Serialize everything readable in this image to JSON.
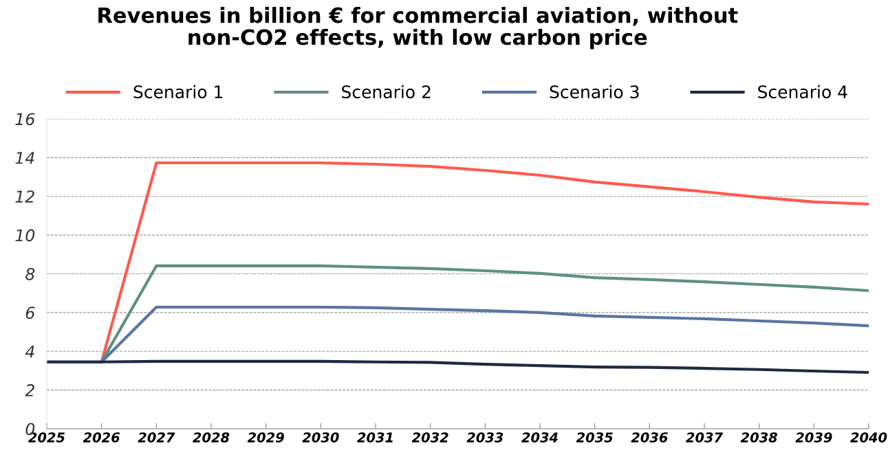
{
  "chart_data": {
    "type": "line",
    "title": "Revenues in billion € for commercial aviation, without\nnon-CO2 effects, with low carbon price",
    "x": [
      2025,
      2026,
      2027,
      2028,
      2029,
      2030,
      2031,
      2032,
      2033,
      2034,
      2035,
      2036,
      2037,
      2038,
      2039,
      2040
    ],
    "series": [
      {
        "name": "Scenario 1",
        "color": "#ff5a4f",
        "values": [
          null,
          3.45,
          13.73,
          13.73,
          13.73,
          13.73,
          13.66,
          13.55,
          13.34,
          13.09,
          12.74,
          12.49,
          12.24,
          11.95,
          11.71,
          11.6
        ]
      },
      {
        "name": "Scenario 2",
        "color": "#5f9080",
        "values": [
          3.45,
          3.45,
          8.41,
          8.41,
          8.41,
          8.41,
          8.34,
          8.27,
          8.16,
          8.02,
          7.8,
          7.7,
          7.59,
          7.45,
          7.31,
          7.13
        ]
      },
      {
        "name": "Scenario 3",
        "color": "#5a74a4",
        "values": [
          3.45,
          3.45,
          6.28,
          6.28,
          6.28,
          6.28,
          6.25,
          6.17,
          6.1,
          6.0,
          5.82,
          5.75,
          5.68,
          5.57,
          5.46,
          5.32
        ]
      },
      {
        "name": "Scenario 4",
        "color": "#1f2a40",
        "values": [
          3.45,
          3.45,
          3.48,
          3.48,
          3.48,
          3.48,
          3.45,
          3.43,
          3.33,
          3.26,
          3.19,
          3.17,
          3.12,
          3.06,
          2.98,
          2.91
        ]
      }
    ],
    "xlim": [
      2025,
      2040
    ],
    "xticks": [
      2025,
      2026,
      2027,
      2028,
      2029,
      2030,
      2031,
      2032,
      2033,
      2034,
      2035,
      2036,
      2037,
      2038,
      2039,
      2040
    ],
    "ylim": [
      0,
      16
    ],
    "yticks": [
      0,
      2,
      4,
      6,
      8,
      10,
      12,
      14,
      16
    ],
    "grid": "y",
    "legend": "top",
    "marker": "none",
    "line_style": "solid"
  }
}
